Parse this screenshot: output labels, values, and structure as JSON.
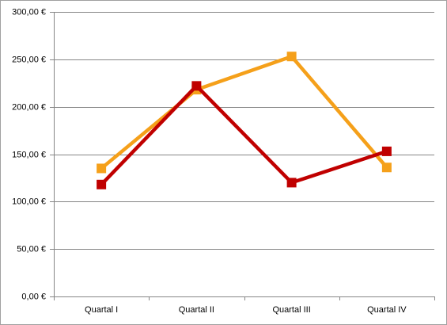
{
  "chart_data": {
    "type": "line",
    "categories": [
      "Quartal I",
      "Quartal II",
      "Quartal III",
      "Quartal IV"
    ],
    "series": [
      {
        "color": "#f5a01a",
        "values": [
          135,
          218,
          253,
          136
        ]
      },
      {
        "color": "#c00000",
        "values": [
          118,
          222,
          120,
          153
        ]
      }
    ],
    "ylim": [
      0,
      300
    ],
    "yticks": [
      {
        "value": 0,
        "label": "0,00 €"
      },
      {
        "value": 50,
        "label": "50,00 €"
      },
      {
        "value": 100,
        "label": "100,00 €"
      },
      {
        "value": 150,
        "label": "150,00 €"
      },
      {
        "value": 200,
        "label": "200,00 €"
      },
      {
        "value": 250,
        "label": "250,00 €"
      },
      {
        "value": 300,
        "label": "300,00 €"
      }
    ],
    "grid": true
  }
}
